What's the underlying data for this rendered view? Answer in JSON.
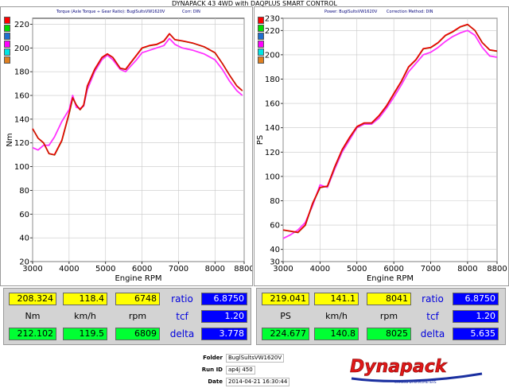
{
  "main_title": "DYNAPACK 43 4WD with DAQPLUS SMART CONTROL",
  "colors": {
    "red": "#ee0000",
    "magenta": "#ff33ff",
    "olive": "#556b00"
  },
  "swatches": [
    "#ff0000",
    "#00dd00",
    "#1f6fd0",
    "#ff00ff",
    "#00e5e5",
    "#e08020"
  ],
  "left_panel": {
    "subtitle_left": "Torque (Axle Torque ÷ Gear Ratio): BuglSultsVW1620V",
    "subtitle_right": "Corr: DIN"
  },
  "right_panel": {
    "subtitle_left": "Power: BuglSultsVW1620V",
    "subtitle_right": "Correction Method: DIN"
  },
  "chart_data": [
    {
      "type": "line",
      "xlabel": "Engine RPM",
      "ylabel": "Nm",
      "xlim": [
        3000,
        8800
      ],
      "ylim": [
        20,
        225
      ],
      "xticks": [
        3000,
        4000,
        5000,
        6000,
        7000,
        8000,
        8800
      ],
      "yticks": [
        20,
        40,
        60,
        80,
        100,
        120,
        140,
        160,
        180,
        200,
        220
      ],
      "series": [
        {
          "color": "#ee0000",
          "x": [
            3000,
            3150,
            3300,
            3450,
            3600,
            3800,
            4000,
            4100,
            4200,
            4300,
            4400,
            4500,
            4700,
            4900,
            5050,
            5200,
            5400,
            5550,
            5700,
            5850,
            6000,
            6200,
            6400,
            6600,
            6750,
            6900,
            7100,
            7400,
            7700,
            8000,
            8200,
            8400,
            8600,
            8750
          ],
          "y": [
            132,
            124,
            120,
            111,
            110,
            122,
            145,
            158,
            152,
            148,
            152,
            168,
            182,
            192,
            195,
            192,
            183,
            182,
            188,
            194,
            200,
            202,
            203,
            206,
            212,
            207,
            206,
            204,
            201,
            196,
            187,
            177,
            168,
            164
          ]
        },
        {
          "color": "#ff33ff",
          "x": [
            3000,
            3150,
            3300,
            3450,
            3600,
            3800,
            4000,
            4100,
            4200,
            4300,
            4400,
            4500,
            4700,
            4900,
            5050,
            5200,
            5400,
            5550,
            5700,
            5850,
            6000,
            6200,
            6400,
            6600,
            6750,
            6900,
            7100,
            7400,
            7700,
            8000,
            8200,
            8400,
            8600,
            8750
          ],
          "y": [
            116,
            114,
            118,
            118,
            125,
            138,
            148,
            160,
            150,
            149,
            151,
            165,
            180,
            190,
            194,
            190,
            182,
            180,
            185,
            190,
            196,
            198,
            200,
            202,
            208,
            203,
            200,
            198,
            195,
            190,
            182,
            172,
            164,
            160
          ]
        }
      ]
    },
    {
      "type": "line",
      "xlabel": "Engine RPM",
      "ylabel": "PS",
      "xlim": [
        3000,
        8800
      ],
      "ylim": [
        30,
        230
      ],
      "xticks": [
        3000,
        4000,
        5000,
        6000,
        7000,
        8000,
        8800
      ],
      "yticks": [
        30,
        40,
        60,
        80,
        100,
        120,
        140,
        160,
        180,
        200,
        220,
        230
      ],
      "series": [
        {
          "color": "#ee0000",
          "x": [
            3000,
            3200,
            3400,
            3600,
            3800,
            4000,
            4200,
            4400,
            4600,
            4800,
            5000,
            5200,
            5400,
            5600,
            5800,
            6000,
            6200,
            6400,
            6600,
            6800,
            7000,
            7200,
            7400,
            7600,
            7800,
            8000,
            8200,
            8400,
            8600,
            8800
          ],
          "y": [
            56,
            55,
            54,
            60,
            78,
            91,
            92,
            108,
            122,
            132,
            141,
            144,
            144,
            150,
            158,
            168,
            178,
            190,
            196,
            205,
            206,
            210,
            216,
            219,
            223,
            225,
            220,
            210,
            204,
            203
          ]
        },
        {
          "color": "#ff33ff",
          "x": [
            3000,
            3200,
            3400,
            3600,
            3800,
            4000,
            4200,
            4400,
            4600,
            4800,
            5000,
            5200,
            5400,
            5600,
            5800,
            6000,
            6200,
            6400,
            6600,
            6800,
            7000,
            7200,
            7400,
            7600,
            7800,
            8000,
            8200,
            8400,
            8600,
            8800
          ],
          "y": [
            49,
            52,
            56,
            62,
            76,
            93,
            91,
            106,
            120,
            130,
            140,
            143,
            143,
            148,
            156,
            165,
            175,
            186,
            193,
            200,
            202,
            206,
            211,
            215,
            218,
            220,
            216,
            206,
            199,
            198
          ]
        }
      ]
    }
  ],
  "left_table": {
    "row1": {
      "v1": "208.324",
      "v2": "118.4",
      "v3": "6748",
      "label": "ratio",
      "v4": "6.8750"
    },
    "row2": {
      "u1": "Nm",
      "u2": "km/h",
      "u3": "rpm",
      "label": "tcf",
      "v4": "1.20"
    },
    "row3": {
      "v1": "212.102",
      "v2": "119.5",
      "v3": "6809",
      "label": "delta",
      "v4": "3.778"
    }
  },
  "right_table": {
    "row1": {
      "v1": "219.041",
      "v2": "141.1",
      "v3": "8041",
      "label": "ratio",
      "v4": "6.8750"
    },
    "row2": {
      "u1": "PS",
      "u2": "km/h",
      "u3": "rpm",
      "label": "tcf",
      "v4": "1.20"
    },
    "row3": {
      "v1": "224.677",
      "v2": "140.8",
      "v3": "8025",
      "label": "delta",
      "v4": "5.635"
    }
  },
  "footer": {
    "folder_label": "Folder",
    "folder_value": "BuglSultsVW1620V",
    "runid_label": "Run ID",
    "runid_value": "ap4j 450",
    "date_label": "Date",
    "date_value": "2014-04-21 16:30:44",
    "logo_text": "Dynapack",
    "logo_tagline": "CHASSIS DYNAMOMETERS"
  }
}
